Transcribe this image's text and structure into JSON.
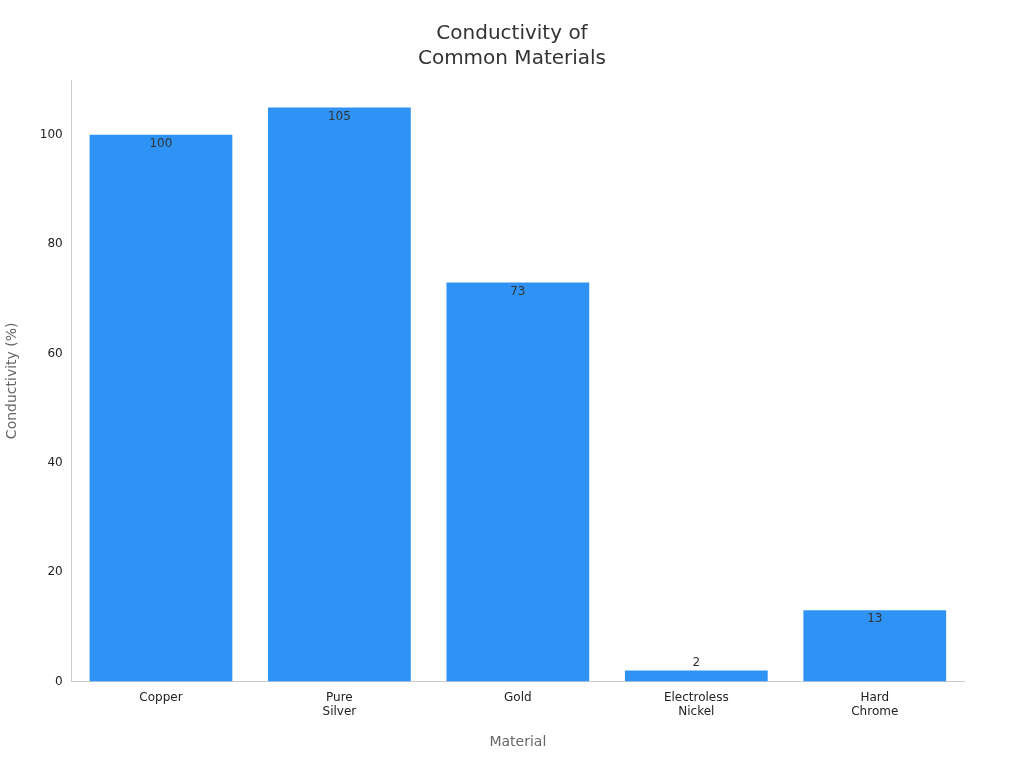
{
  "chart_data": {
    "type": "bar",
    "title": "Conductivity of Common Materials",
    "xlabel": "Material",
    "ylabel": "Conductivity (%)",
    "categories": [
      "Copper",
      "Pure Silver",
      "Gold",
      "Electroless Nickel",
      "Hard Chrome"
    ],
    "values": [
      100,
      105,
      73,
      2,
      13
    ],
    "color": "#2e93f5",
    "ylim": [
      0,
      110
    ],
    "yticks": [
      0,
      20,
      40,
      60,
      80,
      100
    ],
    "grid": false,
    "data_labels": true,
    "legend": false
  }
}
